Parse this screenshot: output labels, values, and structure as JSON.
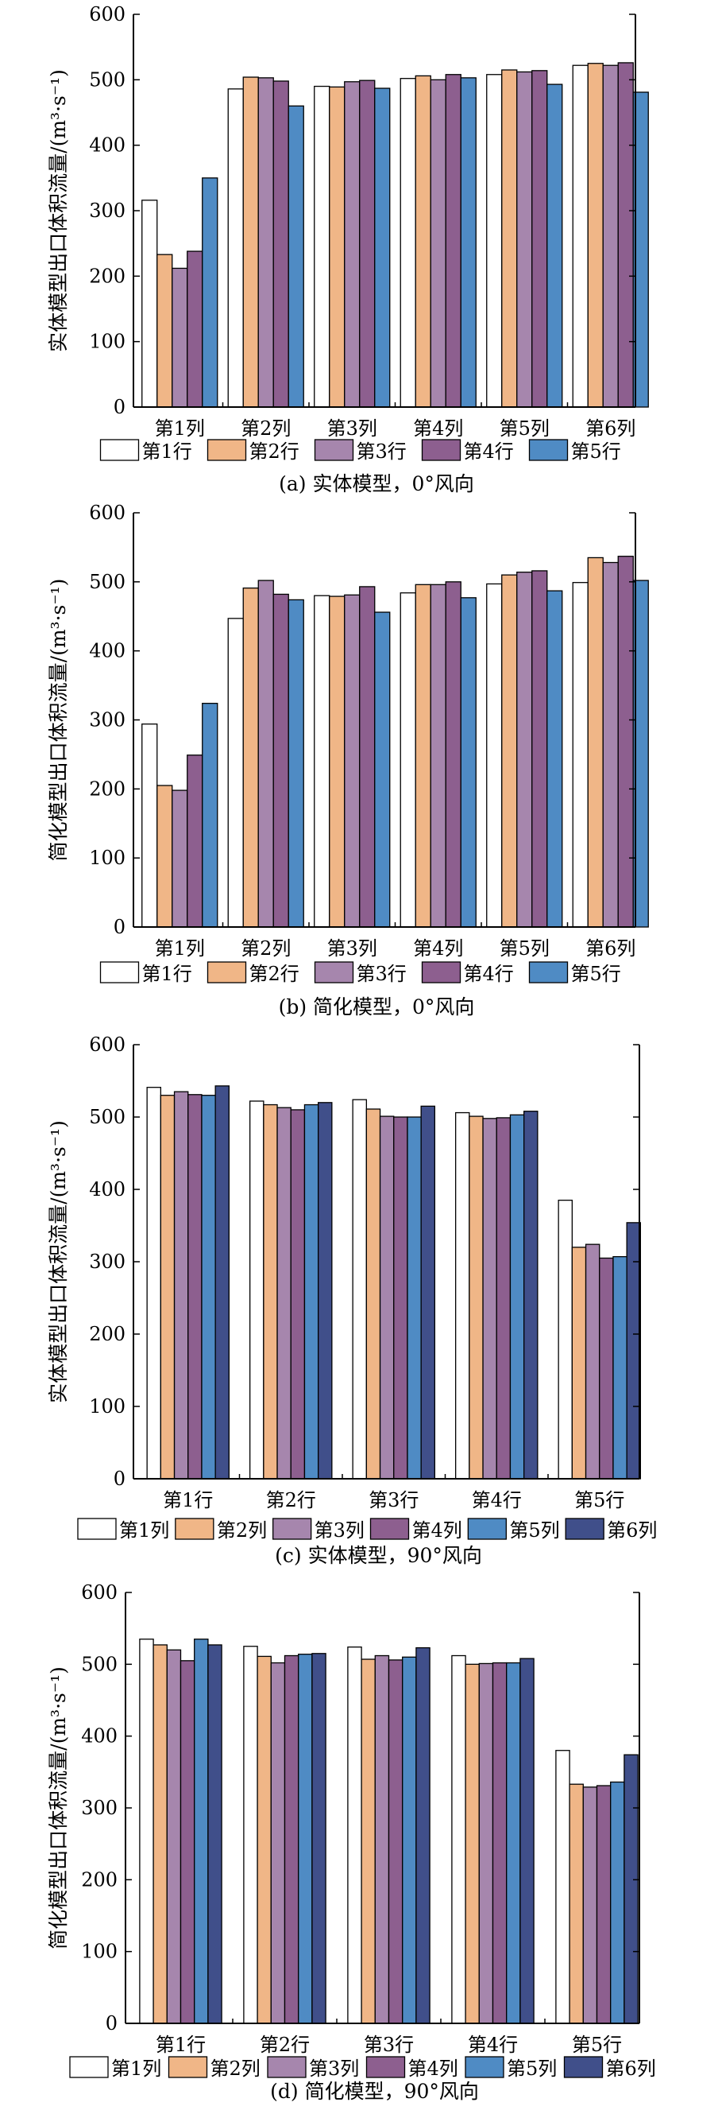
{
  "colors": {
    "row1": "#ffffff",
    "row2": "#f0b687",
    "row3": "#a686ad",
    "row4": "#8d5f8f",
    "row5": "#4f8bc4",
    "row6": "#404f8a",
    "stroke": "#000000"
  },
  "chart_data": [
    {
      "type": "bar",
      "title": "(a) 实体模型，0°风向",
      "ylabel": "实体模型出口体积流量/(m³·s⁻¹)",
      "ylim": [
        0,
        600
      ],
      "yticks": [
        0,
        100,
        200,
        300,
        400,
        500,
        600
      ],
      "categories": [
        "第1列",
        "第2列",
        "第3列",
        "第4列",
        "第5列",
        "第6列"
      ],
      "legend_position": "bottom",
      "series": [
        {
          "name": "第1行",
          "color_key": "row1",
          "values": [
            316,
            486,
            490,
            502,
            508,
            522
          ]
        },
        {
          "name": "第2行",
          "color_key": "row2",
          "values": [
            233,
            504,
            489,
            506,
            515,
            525
          ]
        },
        {
          "name": "第3行",
          "color_key": "row3",
          "values": [
            212,
            503,
            497,
            500,
            512,
            522
          ]
        },
        {
          "name": "第4行",
          "color_key": "row4",
          "values": [
            238,
            498,
            499,
            508,
            514,
            526
          ]
        },
        {
          "name": "第5行",
          "color_key": "row5",
          "values": [
            350,
            460,
            487,
            503,
            493,
            481
          ]
        }
      ]
    },
    {
      "type": "bar",
      "title": "(b) 简化模型，0°风向",
      "ylabel": "简化模型出口体积流量/(m³·s⁻¹)",
      "ylim": [
        0,
        600
      ],
      "yticks": [
        0,
        100,
        200,
        300,
        400,
        500,
        600
      ],
      "categories": [
        "第1列",
        "第2列",
        "第3列",
        "第4列",
        "第5列",
        "第6列"
      ],
      "legend_position": "bottom",
      "series": [
        {
          "name": "第1行",
          "color_key": "row1",
          "values": [
            294,
            447,
            480,
            484,
            497,
            499
          ]
        },
        {
          "name": "第2行",
          "color_key": "row2",
          "values": [
            205,
            491,
            479,
            496,
            510,
            535
          ]
        },
        {
          "name": "第3行",
          "color_key": "row3",
          "values": [
            198,
            502,
            481,
            496,
            514,
            528
          ]
        },
        {
          "name": "第4行",
          "color_key": "row4",
          "values": [
            249,
            482,
            493,
            500,
            516,
            537
          ]
        },
        {
          "name": "第5行",
          "color_key": "row5",
          "values": [
            324,
            474,
            456,
            477,
            487,
            502
          ]
        }
      ]
    },
    {
      "type": "bar",
      "title": "(c) 实体模型，90°风向",
      "ylabel": "实体模型出口体积流量/(m³·s⁻¹)",
      "ylim": [
        0,
        600
      ],
      "yticks": [
        0,
        100,
        200,
        300,
        400,
        500,
        600
      ],
      "categories": [
        "第1行",
        "第2行",
        "第3行",
        "第4行",
        "第5行"
      ],
      "legend_position": "bottom",
      "series": [
        {
          "name": "第1列",
          "color_key": "row1",
          "values": [
            541,
            522,
            524,
            506,
            385
          ]
        },
        {
          "name": "第2列",
          "color_key": "row2",
          "values": [
            530,
            517,
            511,
            501,
            320
          ]
        },
        {
          "name": "第3列",
          "color_key": "row3",
          "values": [
            535,
            513,
            501,
            498,
            324
          ]
        },
        {
          "name": "第4列",
          "color_key": "row4",
          "values": [
            531,
            510,
            500,
            499,
            305
          ]
        },
        {
          "name": "第5列",
          "color_key": "row5",
          "values": [
            530,
            517,
            500,
            503,
            307
          ]
        },
        {
          "name": "第6列",
          "color_key": "row6",
          "values": [
            543,
            520,
            515,
            508,
            354
          ]
        }
      ]
    },
    {
      "type": "bar",
      "title": "(d) 简化模型，90°风向",
      "ylabel": "简化模型出口体积流量/(m³·s⁻¹)",
      "ylim": [
        0,
        600
      ],
      "yticks": [
        0,
        100,
        200,
        300,
        400,
        500,
        600
      ],
      "categories": [
        "第1行",
        "第2行",
        "第3行",
        "第4行",
        "第5行"
      ],
      "legend_position": "bottom",
      "series": [
        {
          "name": "第1列",
          "color_key": "row1",
          "values": [
            535,
            525,
            524,
            512,
            380
          ]
        },
        {
          "name": "第2列",
          "color_key": "row2",
          "values": [
            527,
            511,
            507,
            500,
            333
          ]
        },
        {
          "name": "第3列",
          "color_key": "row3",
          "values": [
            520,
            502,
            512,
            501,
            329
          ]
        },
        {
          "name": "第4列",
          "color_key": "row4",
          "values": [
            505,
            512,
            506,
            502,
            331
          ]
        },
        {
          "name": "第5列",
          "color_key": "row5",
          "values": [
            535,
            514,
            510,
            502,
            336
          ]
        },
        {
          "name": "第6列",
          "color_key": "row6",
          "values": [
            527,
            515,
            523,
            508,
            374
          ]
        }
      ]
    }
  ]
}
